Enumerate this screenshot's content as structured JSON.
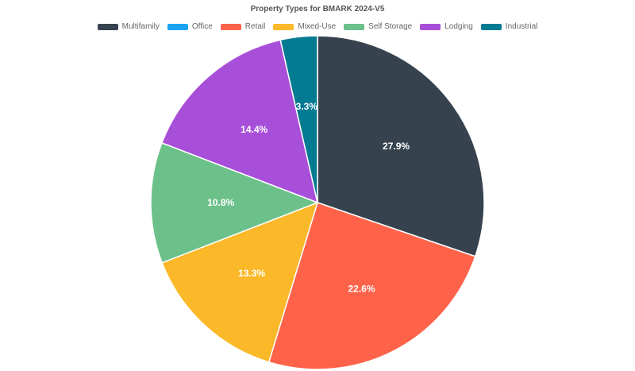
{
  "chart_data": {
    "type": "pie",
    "title": "Property Types for BMARK 2024-V5",
    "legend_position": "top",
    "categories": [
      "Multifamily",
      "Office",
      "Retail",
      "Mixed-Use",
      "Self Storage",
      "Lodging",
      "Industrial"
    ],
    "values": [
      27.9,
      0.0,
      22.6,
      13.3,
      10.8,
      14.4,
      3.3
    ],
    "labels": [
      "27.9%",
      "",
      "22.6%",
      "13.3%",
      "10.8%",
      "14.4%",
      "3.3%"
    ],
    "colors": [
      "#36434f",
      "#1aa3f0",
      "#fe634a",
      "#fbb829",
      "#6cc18a",
      "#a84fda",
      "#037b92"
    ],
    "slice_border_color": "#ffffff"
  }
}
